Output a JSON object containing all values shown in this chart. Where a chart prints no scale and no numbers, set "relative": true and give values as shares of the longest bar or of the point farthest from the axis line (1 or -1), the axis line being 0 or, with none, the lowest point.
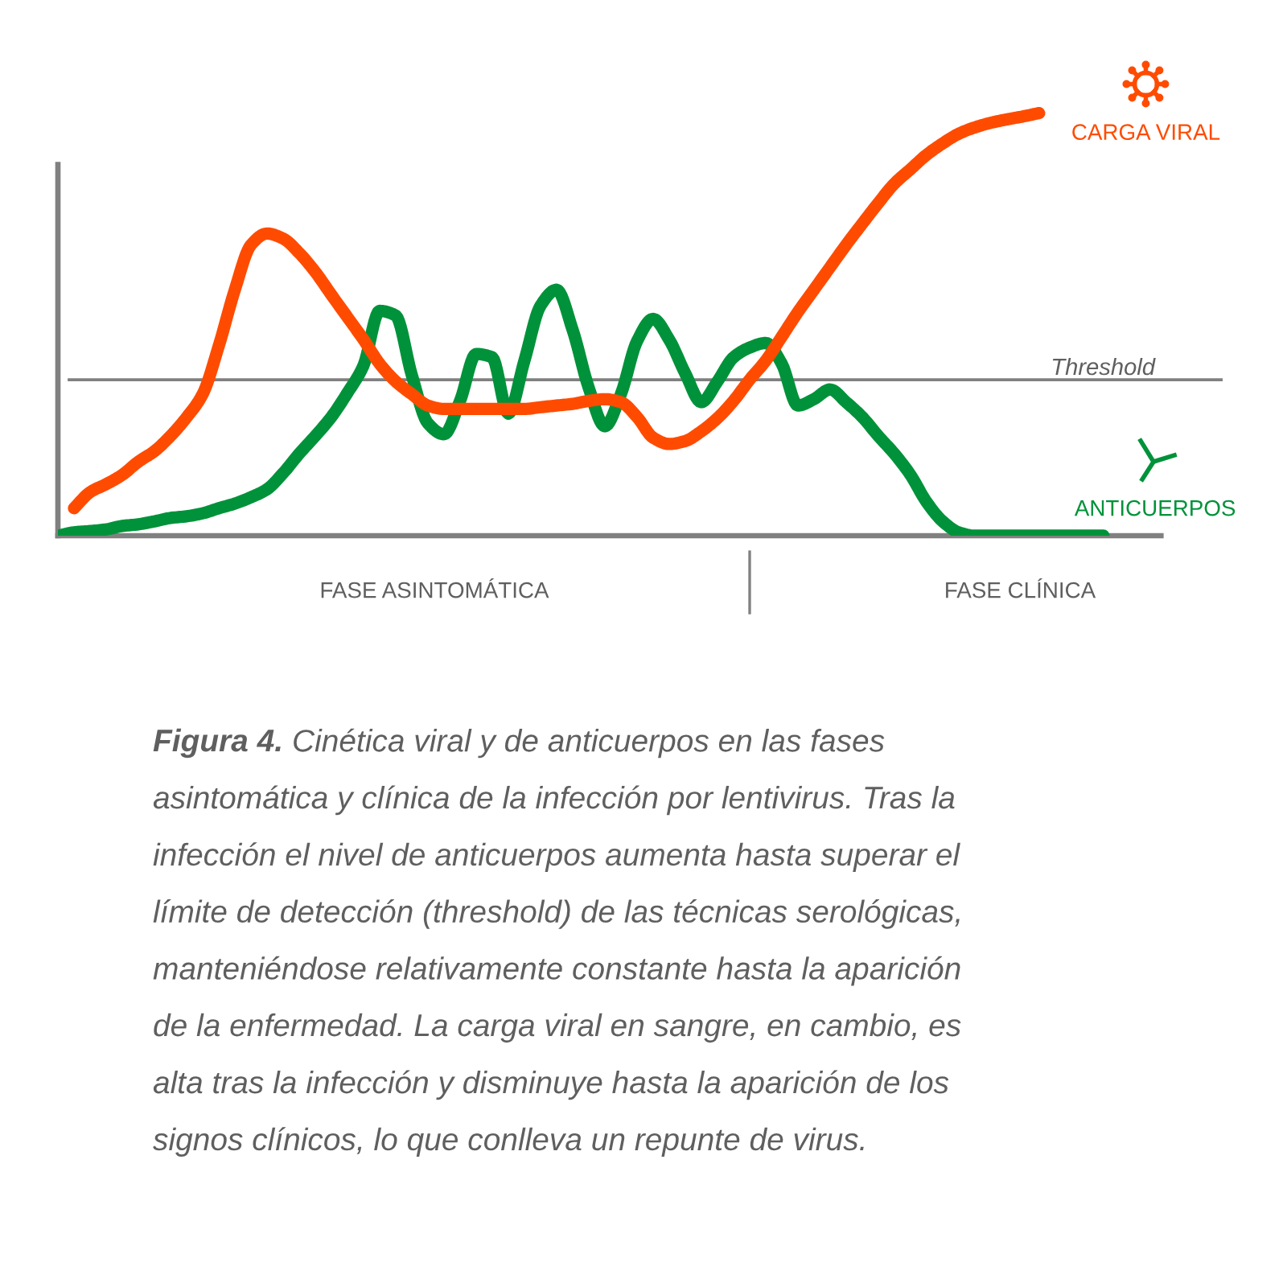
{
  "chart_data": {
    "type": "line",
    "relative": true,
    "line_style": "solid",
    "legend": "right",
    "categories": [
      null,
      null,
      null,
      null,
      null,
      null,
      null,
      null,
      null,
      null,
      null,
      null,
      null,
      null,
      null,
      null,
      null,
      null,
      null,
      null,
      null,
      null,
      null,
      null,
      null,
      null,
      null,
      null,
      null,
      null,
      null,
      null,
      null,
      null,
      null,
      null,
      null,
      null,
      null,
      null,
      null,
      null,
      null,
      null,
      null,
      null,
      null,
      null,
      null,
      null,
      null,
      null,
      null,
      null,
      null,
      null,
      null,
      null,
      null,
      null,
      null,
      null,
      null,
      null,
      null,
      null
    ],
    "series": [
      {
        "name": "CARGA VIRAL",
        "color": "#ff4b00",
        "values": [
          null,
          0.065,
          0.103,
          0.122,
          0.144,
          0.175,
          0.2,
          0.236,
          0.28,
          0.335,
          0.449,
          0.582,
          0.688,
          0.715,
          0.703,
          0.669,
          0.624,
          0.57,
          0.517,
          0.464,
          0.407,
          0.365,
          0.335,
          0.308,
          0.3,
          0.3,
          0.3,
          0.3,
          0.3,
          0.3,
          0.304,
          0.308,
          0.312,
          0.319,
          0.323,
          0.316,
          0.281,
          0.232,
          0.217,
          0.224,
          0.247,
          0.278,
          0.319,
          0.369,
          0.414,
          0.471,
          0.529,
          0.582,
          0.635,
          0.688,
          0.738,
          0.787,
          0.833,
          0.867,
          0.901,
          0.928,
          0.951,
          0.966,
          0.977,
          0.985,
          0.992,
          1.0,
          null,
          null,
          null,
          null
        ]
      },
      {
        "name": "ANTICUERPOS",
        "color": "#00923a",
        "values": [
          0,
          0.008,
          0.011,
          0.015,
          0.023,
          0.027,
          0.034,
          0.042,
          0.046,
          0.053,
          0.065,
          0.076,
          0.091,
          0.11,
          0.148,
          0.194,
          0.236,
          0.281,
          0.338,
          0.403,
          0.532,
          0.521,
          0.38,
          0.266,
          0.24,
          0.319,
          0.43,
          0.422,
          0.289,
          0.414,
          0.544,
          0.582,
          0.487,
          0.35,
          0.259,
          0.335,
          0.46,
          0.513,
          0.464,
          0.384,
          0.316,
          0.365,
          0.422,
          0.445,
          0.456,
          0.407,
          0.308,
          0.323,
          0.346,
          0.316,
          0.281,
          0.236,
          0.194,
          0.144,
          0.08,
          0.034,
          0.008,
          0,
          0,
          0,
          0,
          0,
          0,
          0,
          0,
          0
        ]
      }
    ],
    "ref_lines": [
      {
        "axis": "y",
        "value": 0.369,
        "label": "Threshold",
        "color": "#808080"
      }
    ],
    "annotations": [
      "FASE ASINTOMÁTICA",
      "FASE CLÍNICA",
      "Figura 4.",
      "Cinética viral y de anticuerpos en las fases asintomática y clínica de la infección por lentivirus. Tras la infección el nivel de anticuerpos aumenta hasta superar el límite de detección (threshold) de las técnicas serológicas, manteniéndose relativamente constante hasta la aparición de la enfermedad. La carga viral en sangre, en cambio, es alta tras la infección y disminuye hasta la aparición de los signos clínicos, lo que conlleva un repunte de virus."
    ]
  }
}
